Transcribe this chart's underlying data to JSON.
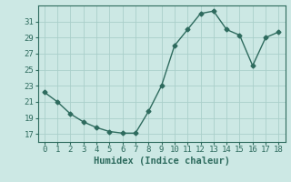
{
  "x": [
    0,
    1,
    2,
    3,
    4,
    5,
    6,
    7,
    8,
    9,
    10,
    11,
    12,
    13,
    14,
    15,
    16,
    17,
    18
  ],
  "y": [
    22.2,
    21.0,
    19.5,
    18.5,
    17.8,
    17.3,
    17.1,
    17.1,
    19.8,
    23.0,
    28.0,
    30.0,
    32.0,
    32.3,
    30.0,
    29.3,
    25.5,
    29.0,
    29.7
  ],
  "line_color": "#2e6b5e",
  "marker": "D",
  "marker_size": 2.5,
  "bg_color": "#cce8e4",
  "grid_color": "#aacfca",
  "xlabel": "Humidex (Indice chaleur)",
  "xlabel_fontsize": 7.5,
  "tick_fontsize": 6.5,
  "ylim": [
    16,
    33
  ],
  "xlim": [
    -0.5,
    18.5
  ],
  "yticks": [
    17,
    19,
    21,
    23,
    25,
    27,
    29,
    31
  ],
  "xticks": [
    0,
    1,
    2,
    3,
    4,
    5,
    6,
    7,
    8,
    9,
    10,
    11,
    12,
    13,
    14,
    15,
    16,
    17,
    18
  ]
}
